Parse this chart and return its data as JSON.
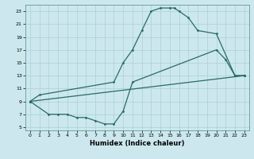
{
  "line1_x": [
    0,
    1,
    9,
    10,
    11,
    12,
    13,
    14,
    15,
    15.5,
    16,
    17,
    18,
    20,
    22,
    23
  ],
  "line1_y": [
    9,
    10,
    12,
    15,
    17,
    20,
    23,
    23.5,
    23.5,
    23.5,
    23,
    22,
    20,
    19.5,
    13,
    13
  ],
  "line2_x": [
    0,
    2,
    3,
    4,
    5,
    6,
    7,
    8,
    9,
    10,
    11,
    20,
    21,
    22,
    23
  ],
  "line2_y": [
    9,
    7,
    7,
    7,
    6.5,
    6.5,
    6,
    5.5,
    5.5,
    7.5,
    12,
    17,
    15.5,
    13,
    13
  ],
  "line3_x": [
    0,
    23
  ],
  "line3_y": [
    9,
    13
  ],
  "bg_color": "#cce8ee",
  "line_color": "#2a6b62",
  "grid_color": "#aacfd8",
  "xlabel": "Humidex (Indice chaleur)",
  "xlim": [
    -0.5,
    23.5
  ],
  "ylim": [
    4.5,
    24
  ],
  "xticks": [
    0,
    1,
    2,
    3,
    4,
    5,
    6,
    7,
    8,
    9,
    10,
    11,
    12,
    13,
    14,
    15,
    16,
    17,
    18,
    19,
    20,
    21,
    22,
    23
  ],
  "yticks": [
    5,
    7,
    9,
    11,
    13,
    15,
    17,
    19,
    21,
    23
  ]
}
